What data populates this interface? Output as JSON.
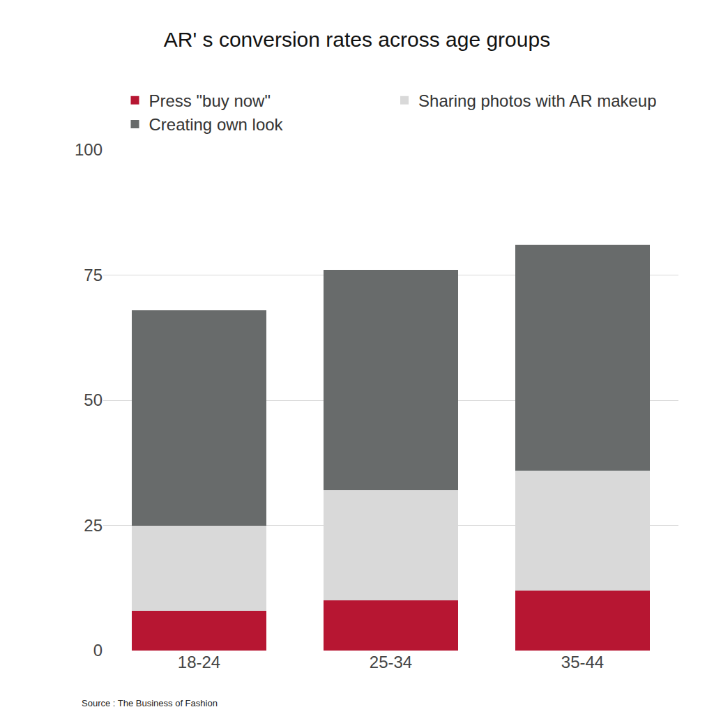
{
  "chart_data": {
    "type": "bar",
    "title": "AR' s conversion rates across age groups",
    "source": "Source : The Business of Fashion",
    "categories": [
      "18-24",
      "25-34",
      "35-44"
    ],
    "series": [
      {
        "name": "Press \"buy now\"",
        "color": "#b71632",
        "values": [
          8,
          10,
          12
        ]
      },
      {
        "name": "Sharing photos with AR makeup",
        "color": "#d9d9d9",
        "values": [
          17,
          22,
          24
        ]
      },
      {
        "name": "Creating own look",
        "color": "#686b6b",
        "values": [
          43,
          44,
          45
        ]
      }
    ],
    "stacked": true,
    "ylim": [
      0,
      100
    ],
    "yticks": [
      0,
      25,
      50,
      75,
      100
    ],
    "grid": true,
    "legend": "top"
  }
}
